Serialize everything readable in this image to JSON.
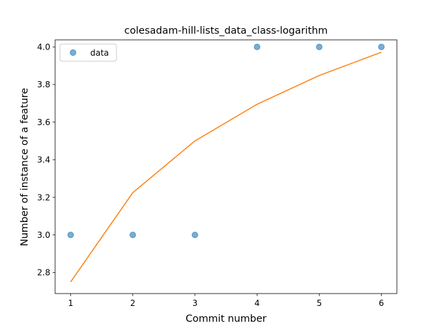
{
  "chart_data": {
    "type": "scatter",
    "title": "colesadam-hill-lists_data_class-logarithm",
    "xlabel": "Commit number",
    "ylabel": "Number of instance of a feature",
    "xlim": [
      0.75,
      6.25
    ],
    "ylim": [
      2.688,
      4.0375
    ],
    "xticks": [
      1,
      2,
      3,
      4,
      5,
      6
    ],
    "yticks": [
      2.8,
      3.0,
      3.2,
      3.4,
      3.6,
      3.8,
      4.0
    ],
    "xtick_labels": [
      "1",
      "2",
      "3",
      "4",
      "5",
      "6"
    ],
    "ytick_labels": [
      "2.8",
      "3.0",
      "3.2",
      "3.4",
      "3.6",
      "3.8",
      "4.0"
    ],
    "legend": {
      "position": "top-left",
      "entries": [
        "data"
      ]
    },
    "grid": false,
    "series": [
      {
        "name": "data",
        "kind": "scatter",
        "color": "#1f77b4",
        "x": [
          1,
          2,
          3,
          4,
          5,
          6
        ],
        "y": [
          3.0,
          3.0,
          3.0,
          4.0,
          4.0,
          4.0
        ]
      },
      {
        "kind": "line",
        "color": "#ff7f0e",
        "x": [
          1,
          2,
          3,
          4,
          5,
          6
        ],
        "y": [
          2.75,
          3.225,
          3.5,
          3.695,
          3.848,
          3.972
        ]
      }
    ]
  }
}
